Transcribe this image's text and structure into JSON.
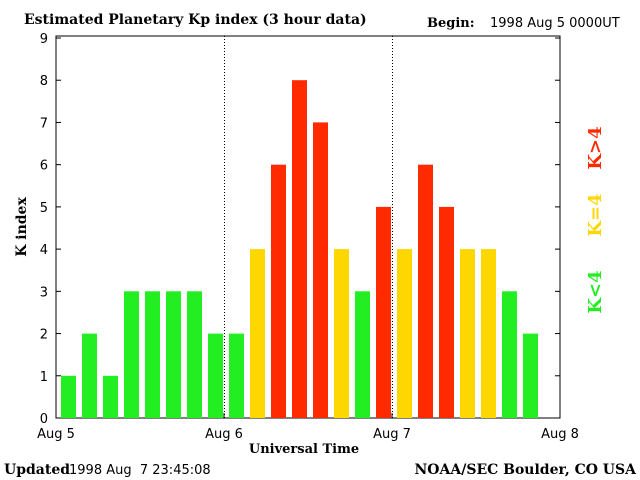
{
  "chart_data": {
    "type": "bar",
    "title": "Estimated Planetary Kp index (3 hour data)",
    "begin_label": "Begin:",
    "begin_value": "1998 Aug 5 0000UT",
    "xlabel": "Universal Time",
    "ylabel": "K index",
    "ylim": [
      0,
      9
    ],
    "yticks": [
      "0",
      "1",
      "2",
      "3",
      "4",
      "5",
      "6",
      "7",
      "8",
      "9"
    ],
    "xticks": [
      "Aug 5",
      "Aug 6",
      "Aug 7",
      "Aug 8"
    ],
    "values": [
      1,
      2,
      1,
      3,
      3,
      3,
      3,
      2,
      2,
      4,
      6,
      8,
      7,
      4,
      3,
      5,
      4,
      6,
      5,
      4,
      4,
      3,
      2
    ],
    "legend": [
      {
        "label": "K<4",
        "color": "#22ee22"
      },
      {
        "label": "K=4",
        "color": "#ffd700"
      },
      {
        "label": "K>4",
        "color": "#ff2a00"
      }
    ],
    "colors": {
      "low": "#22ee22",
      "equal": "#ffd700",
      "high": "#ff2a00"
    }
  },
  "footer": {
    "updated_label": "Updated",
    "updated_value": "1998 Aug  7 23:45:08",
    "source": "NOAA/SEC Boulder, CO USA"
  }
}
